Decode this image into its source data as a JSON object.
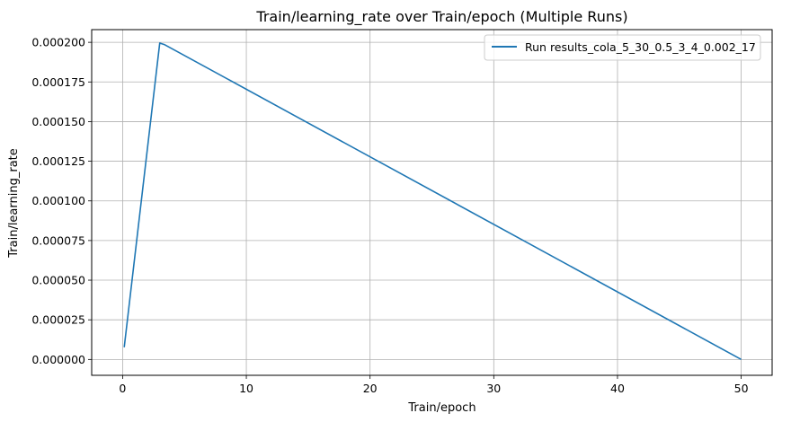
{
  "chart_data": {
    "type": "line",
    "title": "Train/learning_rate over Train/epoch (Multiple Runs)",
    "xlabel": "Train/epoch",
    "ylabel": "Train/learning_rate",
    "xlim": [
      -2.5,
      52.5
    ],
    "ylim": [
      -1e-05,
      0.000208
    ],
    "x_ticks": [
      0,
      10,
      20,
      30,
      40,
      50
    ],
    "x_tick_labels": [
      "0",
      "10",
      "20",
      "30",
      "40",
      "50"
    ],
    "y_ticks": [
      0,
      2.5e-05,
      5e-05,
      7.5e-05,
      0.0001,
      0.000125,
      0.00015,
      0.000175,
      0.0002
    ],
    "y_tick_labels": [
      "0.000000",
      "0.000025",
      "0.000050",
      "0.000075",
      "0.000100",
      "0.000125",
      "0.000150",
      "0.000175",
      "0.000200"
    ],
    "grid": true,
    "legend_position": "top-right",
    "series": [
      {
        "name": "Run results_cola_5_30_0.5_3_4_0.002_17",
        "color": "#1f77b4",
        "x": [
          0.13,
          3.0,
          3.4,
          50.0
        ],
        "y": [
          7.7e-06,
          0.0001995,
          0.0001985,
          0.0
        ]
      }
    ]
  }
}
